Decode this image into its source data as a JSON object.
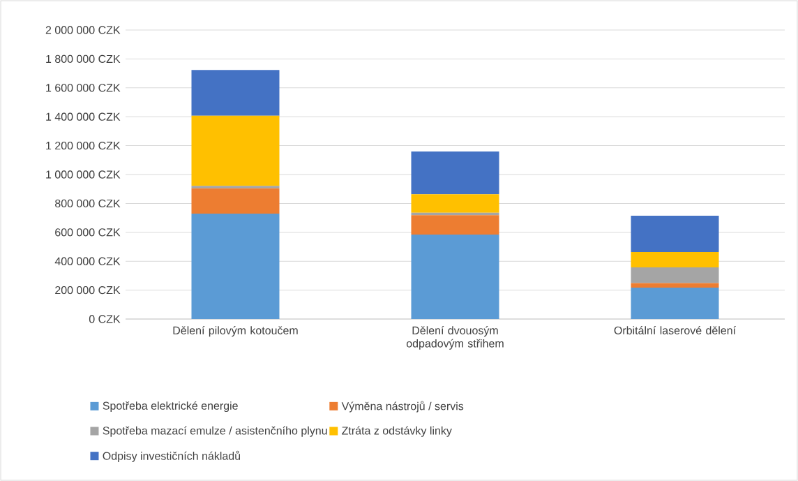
{
  "chart_data": {
    "type": "bar",
    "stacked": true,
    "categories": [
      "Dělení pilovým kotoučem",
      "Dělení dvouosým odpadovým střihem",
      "Orbitální laserové dělení"
    ],
    "series": [
      {
        "name": "Spotřeba elektrické energie",
        "color": "#5b9bd5",
        "values": [
          730000,
          585000,
          217000
        ]
      },
      {
        "name": "Výměna nástrojů / servis",
        "color": "#ed7d31",
        "values": [
          174000,
          134000,
          32000
        ]
      },
      {
        "name": "Spotřeba mazací emulze / asistenčního plynu",
        "color": "#a5a5a5",
        "values": [
          17000,
          17000,
          108000
        ]
      },
      {
        "name": "Ztráta z odstávky linky",
        "color": "#ffc000",
        "values": [
          486000,
          128000,
          107000
        ]
      },
      {
        "name": "Odpisy investičních nákladů",
        "color": "#4472c4",
        "values": [
          316000,
          296000,
          251000
        ]
      }
    ],
    "ylim": [
      0,
      2000000
    ],
    "yticks": [
      {
        "value": 0,
        "label": "0 CZK"
      },
      {
        "value": 200000,
        "label": "200 000 CZK"
      },
      {
        "value": 400000,
        "label": "400 000 CZK"
      },
      {
        "value": 600000,
        "label": "600 000 CZK"
      },
      {
        "value": 800000,
        "label": "800 000 CZK"
      },
      {
        "value": 1000000,
        "label": "1 000 000 CZK"
      },
      {
        "value": 1200000,
        "label": "1 200 000 CZK"
      },
      {
        "value": 1400000,
        "label": "1 400 000 CZK"
      },
      {
        "value": 1600000,
        "label": "1 600 000 CZK"
      },
      {
        "value": 1800000,
        "label": "1 800 000 CZK"
      },
      {
        "value": 2000000,
        "label": "2 000 000 CZK"
      }
    ],
    "grid": "y",
    "legend": "bottom"
  }
}
